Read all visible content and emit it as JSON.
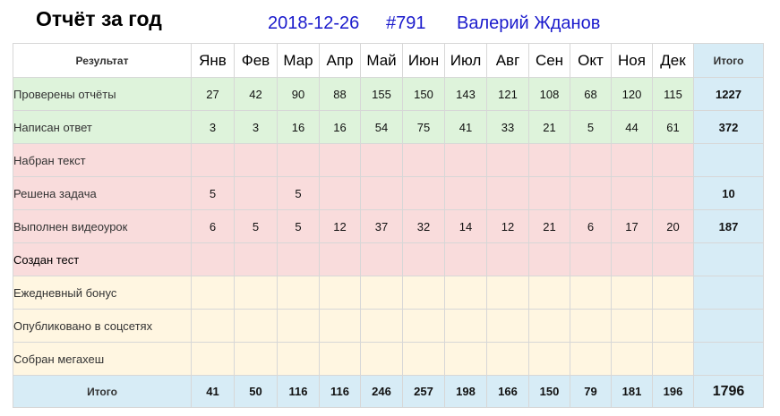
{
  "header": {
    "title": "Отчёт за год",
    "date": "2018-12-26",
    "number": "#791",
    "user": "Валерий Жданов"
  },
  "table": {
    "corner_label": "Результат",
    "months": [
      "Янв",
      "Фев",
      "Мар",
      "Апр",
      "Май",
      "Июн",
      "Июл",
      "Авг",
      "Сен",
      "Окт",
      "Ноя",
      "Дек"
    ],
    "total_label": "Итого",
    "rows": [
      {
        "label": "Проверены отчёты",
        "group": "green",
        "values": [
          "27",
          "42",
          "90",
          "88",
          "155",
          "150",
          "143",
          "121",
          "108",
          "68",
          "120",
          "115"
        ],
        "total": "1227"
      },
      {
        "label": "Написан ответ",
        "group": "green",
        "values": [
          "3",
          "3",
          "16",
          "16",
          "54",
          "75",
          "41",
          "33",
          "21",
          "5",
          "44",
          "61"
        ],
        "total": "372"
      },
      {
        "label": "Набран текст",
        "group": "red",
        "values": [
          "",
          "",
          "",
          "",
          "",
          "",
          "",
          "",
          "",
          "",
          "",
          ""
        ],
        "total": ""
      },
      {
        "label": "Решена задача",
        "group": "red",
        "values": [
          "5",
          "",
          "5",
          "",
          "",
          "",
          "",
          "",
          "",
          "",
          "",
          ""
        ],
        "total": "10"
      },
      {
        "label": "Выполнен видеоурок",
        "group": "red",
        "values": [
          "6",
          "5",
          "5",
          "12",
          "37",
          "32",
          "14",
          "12",
          "21",
          "6",
          "17",
          "20"
        ],
        "total": "187"
      },
      {
        "label": "Создан тест",
        "group": "red",
        "values": [
          "",
          "",
          "",
          "",
          "",
          "",
          "",
          "",
          "",
          "",
          "",
          ""
        ],
        "total": ""
      },
      {
        "label": "Ежедневный бонус",
        "group": "yellow",
        "values": [
          "",
          "",
          "",
          "",
          "",
          "",
          "",
          "",
          "",
          "",
          "",
          ""
        ],
        "total": ""
      },
      {
        "label": "Опубликовано в соцсетях",
        "group": "yellow",
        "values": [
          "",
          "",
          "",
          "",
          "",
          "",
          "",
          "",
          "",
          "",
          "",
          ""
        ],
        "total": ""
      },
      {
        "label": "Собран мегахеш",
        "group": "yellow",
        "values": [
          "",
          "",
          "",
          "",
          "",
          "",
          "",
          "",
          "",
          "",
          "",
          ""
        ],
        "total": ""
      }
    ],
    "totals_row": {
      "label": "Итого",
      "values": [
        "41",
        "50",
        "116",
        "116",
        "246",
        "257",
        "198",
        "166",
        "150",
        "79",
        "181",
        "196"
      ],
      "grand_total": "1796"
    }
  }
}
